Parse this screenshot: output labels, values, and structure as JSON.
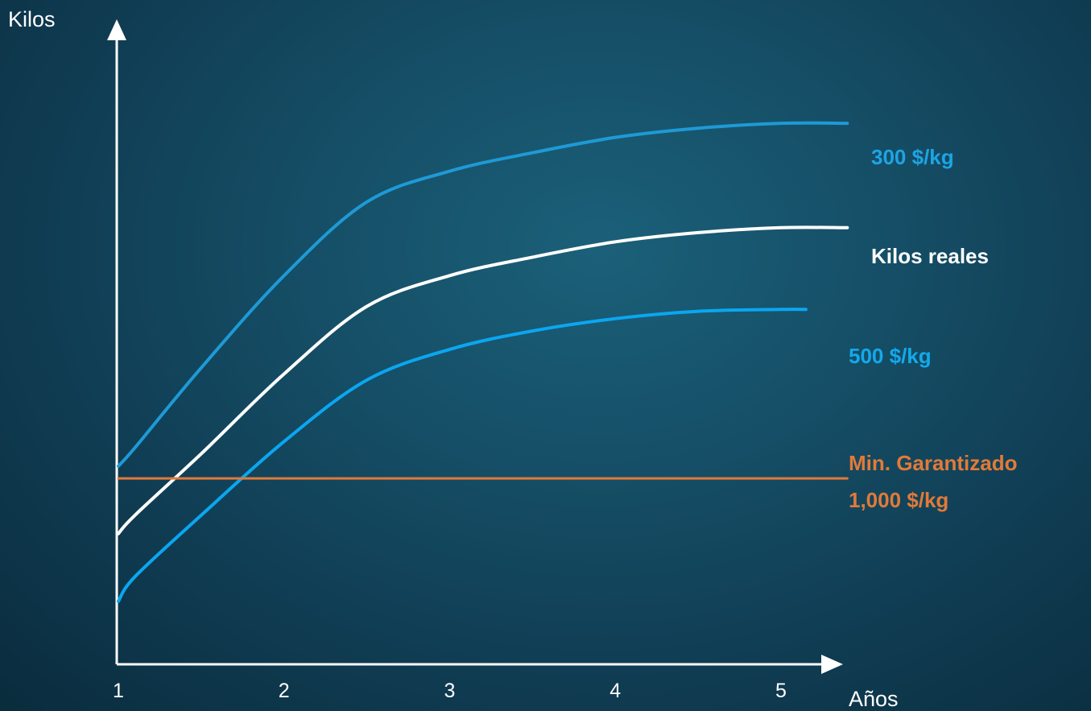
{
  "chart_data": {
    "type": "line",
    "title": "",
    "xlabel": "Años",
    "ylabel": "Kilos",
    "x": [
      1,
      2,
      3,
      4,
      5
    ],
    "xlim": [
      1,
      5.3
    ],
    "ylim": [
      0,
      10
    ],
    "grid": false,
    "series": [
      {
        "name": "300 $/kg",
        "color": "#1e9ad6",
        "x": [
          1,
          1.1,
          1.5,
          2,
          2.5,
          3,
          3.5,
          4,
          4.5,
          5,
          5.4
        ],
        "values": [
          3.2,
          3.5,
          4.8,
          6.3,
          7.5,
          8.0,
          8.3,
          8.55,
          8.7,
          8.78,
          8.78
        ]
      },
      {
        "name": "Kilos reales",
        "color": "#ffffff",
        "x": [
          1,
          1.1,
          1.5,
          2,
          2.5,
          3,
          3.5,
          4,
          4.5,
          5,
          5.4
        ],
        "values": [
          2.1,
          2.4,
          3.4,
          4.7,
          5.8,
          6.3,
          6.6,
          6.85,
          7.0,
          7.08,
          7.08
        ]
      },
      {
        "name": "500 $/kg",
        "color": "#0ba6f0",
        "x": [
          1,
          1.1,
          1.5,
          2,
          2.5,
          3,
          3.5,
          4,
          4.5,
          5,
          5.15
        ],
        "values": [
          1.0,
          1.4,
          2.4,
          3.6,
          4.6,
          5.1,
          5.4,
          5.6,
          5.72,
          5.75,
          5.75
        ]
      },
      {
        "name": "Min. Garantizado 1,000 $/kg",
        "color": "#e07a3a",
        "x": [
          1,
          5.4
        ],
        "values": [
          3.0,
          3.0
        ]
      }
    ],
    "labels": [
      {
        "lines": [
          "300 $/kg"
        ],
        "color": "#1ea4e3"
      },
      {
        "lines": [
          "Kilos reales"
        ],
        "color": "#ffffff"
      },
      {
        "lines": [
          "500 $/kg"
        ],
        "color": "#13a9ec"
      },
      {
        "lines": [
          "Min. Garantizado",
          "1,000 $/kg"
        ],
        "color": "#e27a38"
      }
    ]
  }
}
